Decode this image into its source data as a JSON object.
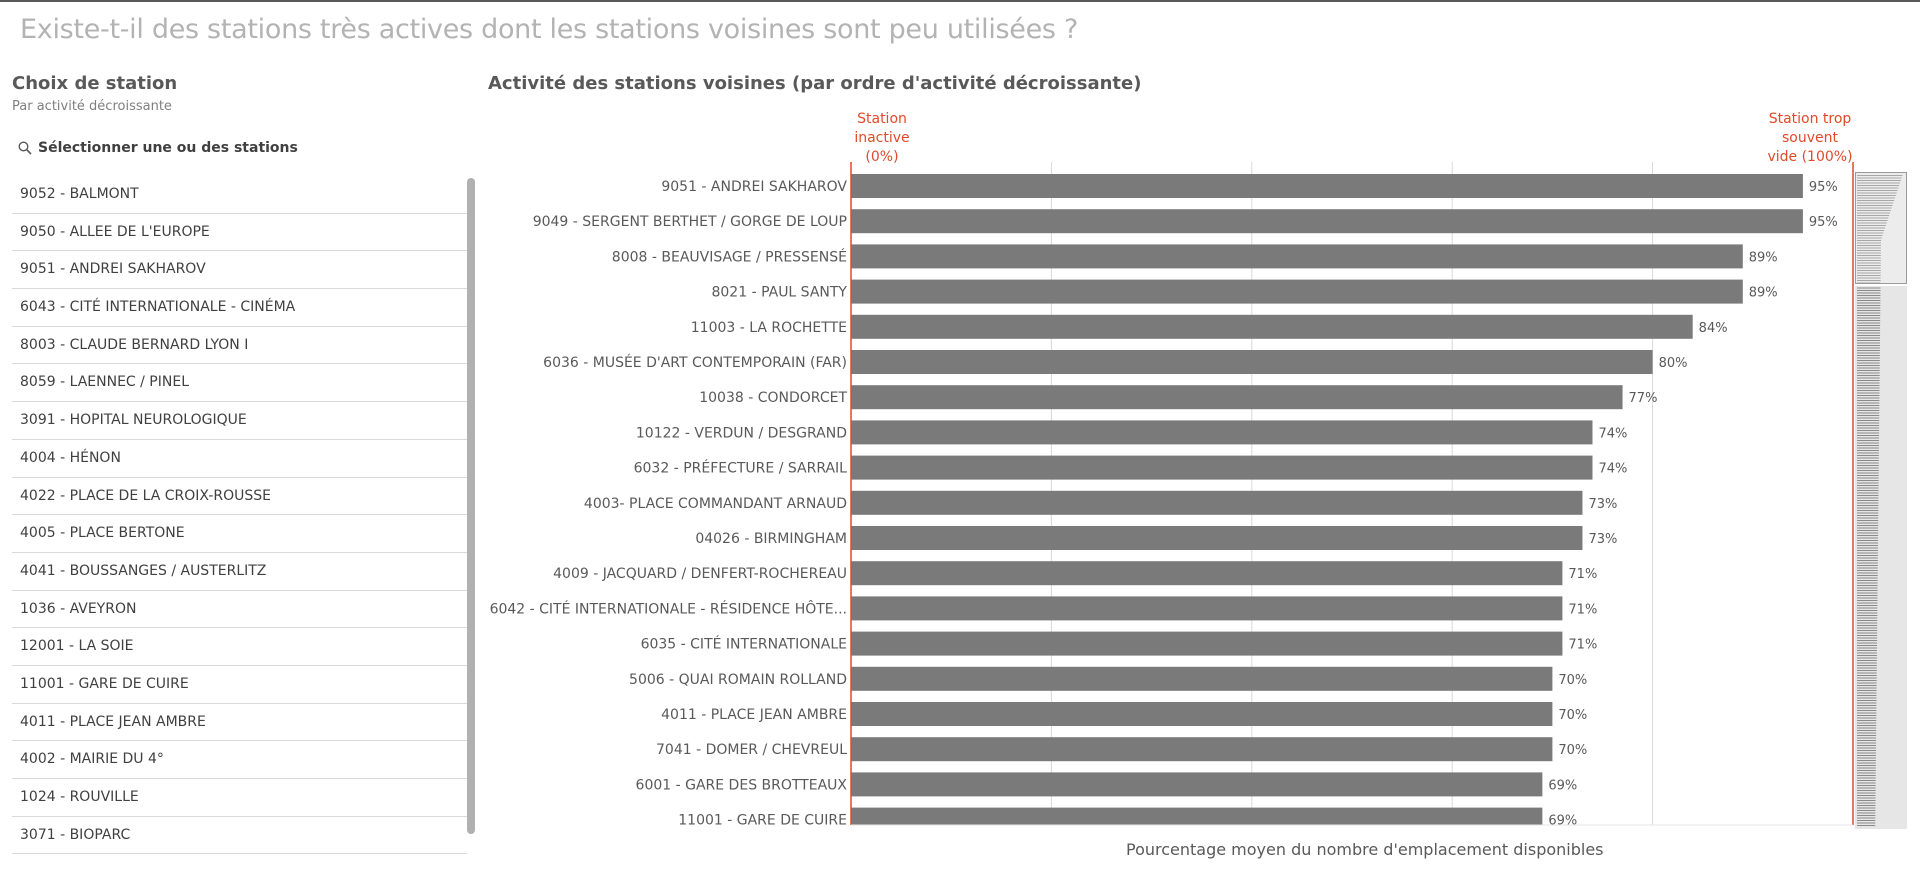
{
  "page": {
    "title": "Existe-t-il des stations très actives dont les stations voisines sont peu utilisées ?"
  },
  "filter": {
    "title": "Choix de station",
    "subtitle": "Par activité décroissante",
    "search_label": "Sélectionner une ou des stations",
    "items": [
      "9052 - BALMONT",
      "9050 - ALLEE DE L'EUROPE",
      "9051 - ANDREI SAKHAROV",
      "6043 - CITÉ INTERNATIONALE - CINÉMA",
      "8003 - CLAUDE BERNARD LYON I",
      "8059 - LAENNEC / PINEL",
      "3091 - HOPITAL NEUROLOGIQUE",
      "4004 - HÉNON",
      "4022 - PLACE DE LA CROIX-ROUSSE",
      "4005 - PLACE BERTONE",
      "4041 - BOUSSANGES / AUSTERLITZ",
      "1036 - AVEYRON",
      "12001 - LA SOIE",
      "11001 - GARE DE CUIRE",
      "4011 - PLACE JEAN AMBRE",
      "4002 - MAIRIE DU 4°",
      "1024 - ROUVILLE",
      "3071 - BIOPARC"
    ]
  },
  "chart": {
    "title": "Activité des stations voisines (par ordre d'activité décroissante)",
    "ref_left_label": "Station inactive (0%)",
    "ref_left_lines": [
      "Station",
      "inactive",
      "(0%)"
    ],
    "ref_right_label": "Station trop souvent vide (100%)",
    "ref_right_lines": [
      "Station trop",
      "souvent",
      "vide (100%)"
    ],
    "xlabel": "Pourcentage moyen du nombre d'emplacement disponibles"
  },
  "chart_data": {
    "type": "bar",
    "orientation": "horizontal",
    "title": "Activité des stations voisines (par ordre d'activité décroissante)",
    "xlabel": "Pourcentage moyen du nombre d'emplacement disponibles",
    "xlim": [
      0,
      100
    ],
    "grid": true,
    "bar_color": "#7a7a7a",
    "reference_color": "#e04a2b",
    "categories": [
      "9051 - ANDREI SAKHAROV",
      "9049 - SERGENT BERTHET / GORGE DE LOUP",
      "8008 - BEAUVISAGE / PRESSENSÉ",
      "8021 - PAUL SANTY",
      "11003 - LA ROCHETTE",
      "6036 - MUSÉE D'ART CONTEMPORAIN (FAR)",
      "10038 - CONDORCET",
      "10122 - VERDUN / DESGRAND",
      "6032 - PRÉFECTURE / SARRAIL",
      "4003- PLACE COMMANDANT  ARNAUD",
      "04026 - BIRMINGHAM",
      "4009 - JACQUARD / DENFERT-ROCHEREAU",
      "6042 - CITÉ INTERNATIONALE - RÉSIDENCE HÔTE...",
      "6035 - CITÉ INTERNATIONALE",
      "5006 - QUAI ROMAIN ROLLAND",
      "4011 - PLACE JEAN AMBRE",
      "7041 - DOMER / CHEVREUL",
      "6001 - GARE DES BROTTEAUX",
      "11001 - GARE DE CUIRE"
    ],
    "values": [
      95,
      95,
      89,
      89,
      84,
      80,
      77,
      74,
      74,
      73,
      73,
      71,
      71,
      71,
      70,
      70,
      70,
      69,
      69
    ],
    "value_labels": [
      "95%",
      "95%",
      "89%",
      "89%",
      "84%",
      "80%",
      "77%",
      "74%",
      "74%",
      "73%",
      "73%",
      "71%",
      "71%",
      "71%",
      "70%",
      "70%",
      "70%",
      "69%",
      "69%"
    ]
  }
}
